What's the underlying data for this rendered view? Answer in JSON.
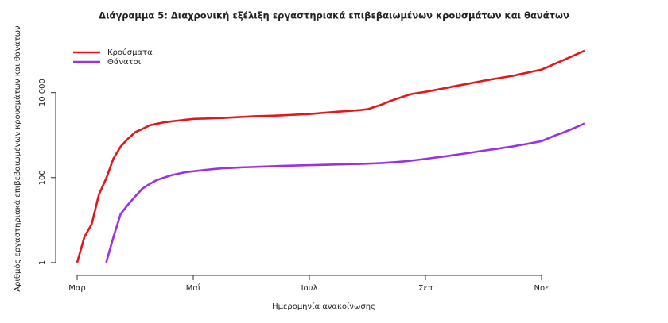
{
  "chart_data": {
    "type": "line",
    "title": "Διάγραμμα 5: Διαχρονική εξέλιξη εργαστηριακά επιβεβαιωμένων κρουσμάτων και θανάτων",
    "x_label": "Ημερομηνία ανακοίνωσης",
    "y_label": "Αριθμός εργαστηριακά επιβεβαιωμένων κρουσμάτων και θανάτων",
    "categories": [
      "Μαρ",
      null,
      null,
      null,
      null,
      null,
      null,
      null,
      null,
      null,
      null,
      null,
      null,
      null,
      null,
      null,
      "Μαΐ",
      null,
      null,
      null,
      null,
      null,
      null,
      null,
      null,
      null,
      null,
      null,
      null,
      null,
      null,
      null,
      "Ιουλ",
      null,
      null,
      null,
      null,
      null,
      null,
      null,
      null,
      null,
      null,
      null,
      null,
      null,
      null,
      null,
      "Σεπ",
      null,
      null,
      null,
      null,
      null,
      null,
      null,
      null,
      null,
      null,
      null,
      null,
      null,
      null,
      null,
      "Νοε",
      null,
      null,
      null,
      null,
      null,
      null
    ],
    "series": [
      {
        "name": "Κρούσματα",
        "color": "#e3171b",
        "values": [
          1,
          4,
          8,
          40,
          95,
          280,
          540,
          820,
          1170,
          1400,
          1700,
          1850,
          2000,
          2100,
          2200,
          2300,
          2400,
          2430,
          2460,
          2490,
          2520,
          2580,
          2640,
          2700,
          2750,
          2790,
          2820,
          2860,
          2900,
          2960,
          3020,
          3080,
          3130,
          3230,
          3350,
          3450,
          3560,
          3650,
          3750,
          3880,
          4050,
          4600,
          5250,
          6200,
          7100,
          8100,
          9200,
          9800,
          10400,
          11200,
          12100,
          13000,
          14100,
          15200,
          16300,
          17600,
          19000,
          20300,
          21700,
          23200,
          24700,
          27000,
          29300,
          32000,
          34800,
          41000,
          49000,
          58000,
          69000,
          82000,
          98000
        ]
      },
      {
        "name": "Θάνατοι",
        "color": "#9b30e6",
        "values": [
          null,
          null,
          null,
          null,
          1,
          4,
          14,
          23,
          36,
          55,
          71,
          88,
          100,
          114,
          124,
          135,
          141,
          147,
          154,
          160,
          165,
          168,
          172,
          175,
          177,
          180,
          182,
          185,
          188,
          190,
          192,
          194,
          196,
          198,
          200,
          202,
          204,
          206,
          208,
          210,
          213,
          216,
          220,
          226,
          232,
          240,
          250,
          262,
          275,
          290,
          305,
          320,
          340,
          360,
          380,
          405,
          430,
          455,
          480,
          510,
          540,
          580,
          620,
          670,
          720,
          850,
          1000,
          1150,
          1350,
          1600,
          1900
        ]
      }
    ],
    "yscale": "log",
    "ylim": [
      0.5,
      200000
    ],
    "yticks": [
      1,
      100,
      {
        "value": 10000,
        "label": "10 000"
      }
    ],
    "legend": "top-left",
    "grid": false
  }
}
